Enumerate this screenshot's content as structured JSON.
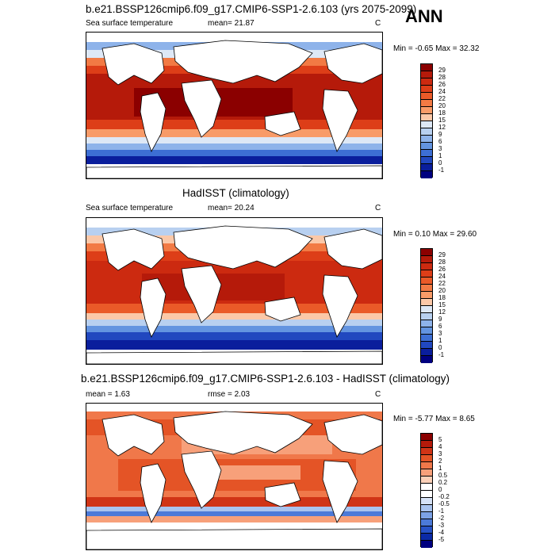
{
  "panels": [
    {
      "title": "b.e21.BSSP126cmip6.f09_g17.CMIP6-SSP1-2.6.103 (yrs 2075-2099)",
      "left_label": "Sea surface temperature",
      "mid_label": "mean=  21.87",
      "unit": "C",
      "minmax": "Min =  -0.65 Max =  32.32",
      "ticks": [
        "29",
        "28",
        "26",
        "24",
        "22",
        "20",
        "18",
        "15",
        "12",
        "9",
        "6",
        "3",
        "1",
        "0",
        "-1"
      ]
    },
    {
      "title": "HadISST (climatology)",
      "left_label": "Sea surface temperature",
      "mid_label": "mean=  20.24",
      "unit": "C",
      "minmax": "Min =  0.10 Max =  29.60",
      "ticks": [
        "29",
        "28",
        "26",
        "24",
        "22",
        "20",
        "18",
        "15",
        "12",
        "9",
        "6",
        "3",
        "1",
        "0",
        "-1"
      ]
    },
    {
      "title": "b.e21.BSSP126cmip6.f09_g17.CMIP6-SSP1-2.6.103 - HadISST (climatology)",
      "left_label": "mean =   1.63",
      "mid_label": "rmse =   2.03",
      "unit": "C",
      "minmax": "Min =  -5.77 Max =   8.65",
      "ticks": [
        "5",
        "4",
        "3",
        "2",
        "1",
        "0.5",
        "0.2",
        "0",
        "-0.2",
        "-0.5",
        "-1",
        "-2",
        "-3",
        "-4",
        "-5"
      ]
    }
  ],
  "season": "ANN",
  "colors": {
    "sst_scale": [
      "#8b0000",
      "#b51a0a",
      "#cc2a10",
      "#dd3e18",
      "#ea5a28",
      "#f27a44",
      "#f89b68",
      "#fbc8a8",
      "#dde8f6",
      "#b8d0f0",
      "#8eb3ea",
      "#6394e0",
      "#3d6fd4",
      "#2148bf",
      "#0a1e9c",
      "#000080"
    ],
    "diff_scale": [
      "#8b0000",
      "#b51a0a",
      "#d03416",
      "#e45426",
      "#f0784a",
      "#f7a07a",
      "#fbd0b8",
      "#ffffff",
      "#ffffff",
      "#d6e2f6",
      "#a9c3ee",
      "#7ca2e6",
      "#4c7ad8",
      "#2752c6",
      "#0b2aa6",
      "#000080"
    ],
    "land": "#ffffff",
    "coast": "#000000"
  }
}
